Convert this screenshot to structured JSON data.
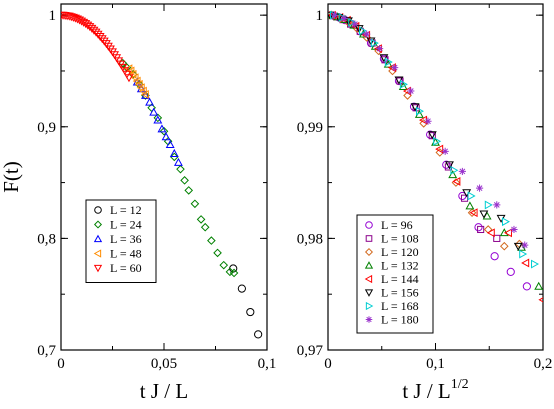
{
  "chart_data": [
    {
      "type": "scatter",
      "xlabel": "t J / L",
      "ylabel": "F(t)",
      "xlim": [
        0,
        0.1
      ],
      "ylim": [
        0.7,
        1.01
      ],
      "xticks": [
        0,
        0.05,
        0.1
      ],
      "xtick_labels": [
        "0",
        "0,05",
        "0,1"
      ],
      "yticks": [
        0.7,
        0.8,
        0.9,
        1.0
      ],
      "ytick_labels": [
        "0,7",
        "0,8",
        "0,9",
        "1"
      ],
      "grid": false,
      "legend_position": "lower-left",
      "series": [
        {
          "name": "L = 12",
          "marker": "circle",
          "color": "#000000",
          "x": [
            0.0836,
            0.0878,
            0.0919,
            0.0957
          ],
          "y": [
            0.773,
            0.755,
            0.734,
            0.714
          ]
        },
        {
          "name": "L = 24",
          "marker": "diamond",
          "color": "#008000",
          "x": [
            0.03,
            0.032,
            0.035,
            0.038,
            0.041,
            0.044,
            0.047,
            0.05,
            0.052,
            0.055,
            0.058,
            0.06,
            0.062,
            0.065,
            0.068,
            0.07,
            0.073,
            0.076,
            0.079,
            0.082,
            0.084
          ],
          "y": [
            0.957,
            0.953,
            0.947,
            0.938,
            0.928,
            0.917,
            0.908,
            0.896,
            0.887,
            0.873,
            0.862,
            0.852,
            0.843,
            0.831,
            0.817,
            0.81,
            0.798,
            0.787,
            0.776,
            0.77,
            0.769
          ]
        },
        {
          "name": "L = 36",
          "marker": "triangle-up",
          "color": "#0000ff",
          "x": [
            0.037,
            0.039,
            0.041,
            0.043,
            0.045,
            0.047,
            0.049,
            0.051,
            0.053,
            0.055,
            0.057
          ],
          "y": [
            0.94,
            0.934,
            0.928,
            0.922,
            0.913,
            0.906,
            0.898,
            0.891,
            0.884,
            0.876,
            0.868
          ]
        },
        {
          "name": "L = 48",
          "marker": "triangle-left",
          "color": "#ff8c00",
          "x": [
            0.033,
            0.034,
            0.035,
            0.036,
            0.037,
            0.038,
            0.039,
            0.04,
            0.041
          ],
          "y": [
            0.952,
            0.95,
            0.947,
            0.944,
            0.941,
            0.938,
            0.935,
            0.932,
            0.929
          ]
        },
        {
          "name": "L = 60",
          "marker": "triangle-down",
          "color": "#ff0000",
          "x": [
            0.0,
            0.001,
            0.002,
            0.003,
            0.004,
            0.005,
            0.006,
            0.007,
            0.008,
            0.009,
            0.01,
            0.011,
            0.012,
            0.013,
            0.014,
            0.015,
            0.016,
            0.017,
            0.018,
            0.019,
            0.02,
            0.021,
            0.022,
            0.023,
            0.024,
            0.025,
            0.026,
            0.027,
            0.028,
            0.029,
            0.03,
            0.031,
            0.032,
            0.033
          ],
          "y": [
            1.0,
            1.0,
            0.9998,
            0.9995,
            0.9992,
            0.9987,
            0.9981,
            0.9975,
            0.9967,
            0.9958,
            0.9948,
            0.9937,
            0.9925,
            0.9912,
            0.9898,
            0.9883,
            0.9866,
            0.9849,
            0.983,
            0.981,
            0.979,
            0.9768,
            0.9746,
            0.9722,
            0.9698,
            0.9672,
            0.9646,
            0.9619,
            0.9591,
            0.9562,
            0.9533,
            0.9503,
            0.9472,
            0.944
          ]
        }
      ]
    },
    {
      "type": "scatter",
      "xlabel": "t J / L",
      "xlabel_exponent": "1/2",
      "xlim": [
        0,
        0.2
      ],
      "ylim": [
        0.97,
        1.001
      ],
      "xticks": [
        0,
        0.1,
        0.2
      ],
      "xtick_labels": [
        "0",
        "0,1",
        "0,2"
      ],
      "yticks": [
        0.97,
        0.98,
        0.99,
        1.0
      ],
      "ytick_labels": [
        "0,97",
        "0,98",
        "0,99",
        "1"
      ],
      "grid": false,
      "legend_position": "lower-left",
      "series": [
        {
          "name": "L = 96",
          "marker": "circle",
          "color": "#9400d3",
          "x": [
            0.0,
            0.005,
            0.01,
            0.016,
            0.022,
            0.03,
            0.04,
            0.052,
            0.066,
            0.08,
            0.095,
            0.11,
            0.125,
            0.14,
            0.155,
            0.17,
            0.185
          ],
          "y": [
            1.0,
            0.99995,
            0.9998,
            0.99955,
            0.9992,
            0.99855,
            0.9975,
            0.9961,
            0.9941,
            0.9918,
            0.9893,
            0.9866,
            0.9838,
            0.981,
            0.9784,
            0.977,
            0.9757
          ]
        },
        {
          "name": "L = 108",
          "marker": "square",
          "color": "#8b008b",
          "x": [
            0.002,
            0.008,
            0.014,
            0.021,
            0.03,
            0.041,
            0.053,
            0.067,
            0.082,
            0.097,
            0.112,
            0.127,
            0.142,
            0.157
          ],
          "y": [
            1.0,
            0.99985,
            0.9996,
            0.9992,
            0.99855,
            0.9975,
            0.996,
            0.9941,
            0.9917,
            0.9892,
            0.9864,
            0.9836,
            0.9808,
            0.98
          ]
        },
        {
          "name": "L = 120",
          "marker": "diamond",
          "color": "#d2691e",
          "x": [
            0.001,
            0.006,
            0.012,
            0.019,
            0.027,
            0.036,
            0.047,
            0.06,
            0.074,
            0.089,
            0.104,
            0.119,
            0.134,
            0.149,
            0.164,
            0.178
          ],
          "y": [
            1.0,
            0.9999,
            0.9997,
            0.99935,
            0.9988,
            0.998,
            0.9968,
            0.995,
            0.9928,
            0.9903,
            0.9877,
            0.985,
            0.9823,
            0.9808,
            0.9793,
            0.9795
          ]
        },
        {
          "name": "L = 132",
          "marker": "triangle-up",
          "color": "#008000",
          "x": [
            0.003,
            0.009,
            0.016,
            0.024,
            0.033,
            0.044,
            0.056,
            0.07,
            0.085,
            0.1,
            0.116,
            0.132,
            0.148,
            0.164,
            0.18,
            0.196
          ],
          "y": [
            1.0,
            0.99985,
            0.9996,
            0.9991,
            0.9983,
            0.9972,
            0.9956,
            0.9936,
            0.9911,
            0.9886,
            0.9857,
            0.9829,
            0.982,
            0.9805,
            0.9792,
            0.9757
          ]
        },
        {
          "name": "L = 144",
          "marker": "triangle-left",
          "color": "#ff0000",
          "x": [
            0.004,
            0.011,
            0.018,
            0.026,
            0.036,
            0.047,
            0.06,
            0.074,
            0.089,
            0.104,
            0.12,
            0.136,
            0.152,
            0.168,
            0.184,
            0.2
          ],
          "y": [
            1.0,
            0.9998,
            0.99955,
            0.999,
            0.9982,
            0.997,
            0.9953,
            0.9932,
            0.9906,
            0.988,
            0.9851,
            0.9823,
            0.9805,
            0.9805,
            0.9778,
            0.9745
          ]
        },
        {
          "name": "L = 156",
          "marker": "triangle-down",
          "color": "#000000",
          "x": [
            0.002,
            0.01,
            0.019,
            0.029,
            0.04,
            0.052,
            0.066,
            0.081,
            0.097,
            0.113,
            0.129,
            0.145,
            0.161,
            0.177
          ],
          "y": [
            1.0,
            0.9998,
            0.9995,
            0.9988,
            0.9977,
            0.9962,
            0.9942,
            0.9918,
            0.9893,
            0.9866,
            0.9841,
            0.9822,
            0.9818,
            0.9793
          ]
        },
        {
          "name": "L = 168",
          "marker": "triangle-right",
          "color": "#00ced1",
          "x": [
            0.005,
            0.013,
            0.022,
            0.032,
            0.043,
            0.056,
            0.07,
            0.085,
            0.101,
            0.117,
            0.133,
            0.149,
            0.165,
            0.181,
            0.192
          ],
          "y": [
            1.0,
            0.9998,
            0.99935,
            0.9986,
            0.9975,
            0.9958,
            0.9938,
            0.9914,
            0.9887,
            0.9861,
            0.9838,
            0.983,
            0.9815,
            0.9786,
            0.9777
          ]
        },
        {
          "name": "L = 180",
          "marker": "star",
          "color": "#9932cc",
          "x": [
            0.006,
            0.015,
            0.025,
            0.036,
            0.048,
            0.062,
            0.077,
            0.093,
            0.109,
            0.125,
            0.141,
            0.157,
            0.173,
            0.183
          ],
          "y": [
            1.0,
            0.9997,
            0.9992,
            0.9983,
            0.997,
            0.9953,
            0.9932,
            0.9905,
            0.9878,
            0.986,
            0.9845,
            0.983,
            0.9808,
            0.9794
          ]
        }
      ]
    }
  ]
}
